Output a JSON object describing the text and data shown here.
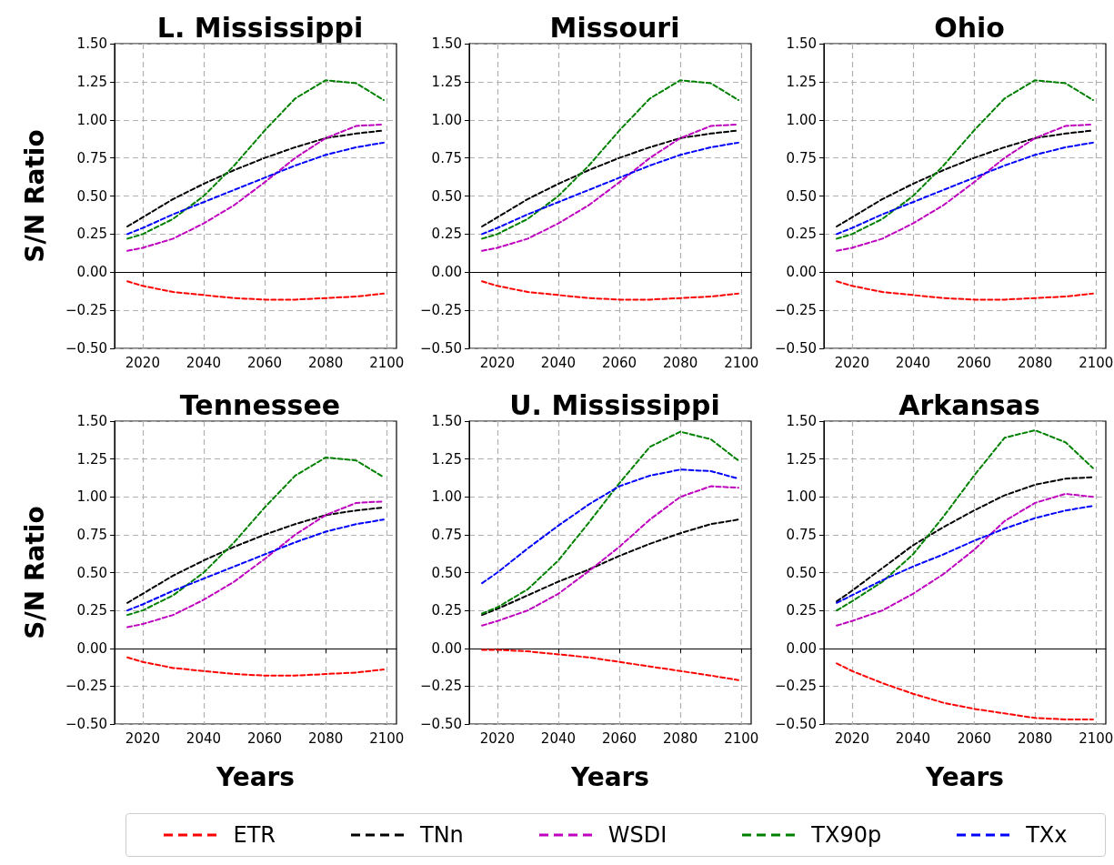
{
  "chart_data": [
    {
      "type": "line",
      "title": "L. Mississippi",
      "ylabel": "S/N Ratio",
      "x": [
        2015,
        2020,
        2030,
        2040,
        2050,
        2060,
        2070,
        2080,
        2090,
        2099
      ],
      "xlim": [
        2010.8,
        2103.2
      ],
      "xticks": [
        2020,
        2040,
        2060,
        2080,
        2100
      ],
      "ylim": [
        -0.5,
        1.5
      ],
      "yticks": [
        {
          "value": -0.5,
          "label": "−0.50"
        },
        {
          "value": -0.25,
          "label": "−0.25"
        },
        {
          "value": 0,
          "label": "0.00"
        },
        {
          "value": 0.25,
          "label": "0.25"
        },
        {
          "value": 0.5,
          "label": "0.50"
        },
        {
          "value": 0.75,
          "label": "0.75"
        },
        {
          "value": 1,
          "label": "1.00"
        },
        {
          "value": 1.25,
          "label": "1.25"
        },
        {
          "value": 1.5,
          "label": "1.50"
        }
      ],
      "grid": true,
      "marker": "none",
      "line_style": "dashed",
      "legend": "bottom",
      "series": [
        {
          "name": "ETR",
          "color": "#ff0000",
          "values": [
            -0.06,
            -0.09,
            -0.13,
            -0.15,
            -0.17,
            -0.18,
            -0.18,
            -0.17,
            -0.16,
            -0.14
          ]
        },
        {
          "name": "TNn",
          "color": "#000000",
          "values": [
            0.3,
            0.36,
            0.48,
            0.58,
            0.67,
            0.75,
            0.82,
            0.88,
            0.91,
            0.93
          ]
        },
        {
          "name": "WSDI",
          "color": "#bf00bf",
          "values": [
            0.14,
            0.16,
            0.22,
            0.32,
            0.44,
            0.59,
            0.75,
            0.88,
            0.96,
            0.97
          ]
        },
        {
          "name": "TX90p",
          "color": "#008000",
          "values": [
            0.22,
            0.25,
            0.35,
            0.5,
            0.7,
            0.93,
            1.14,
            1.26,
            1.24,
            1.13
          ]
        },
        {
          "name": "TXx",
          "color": "#0000ff",
          "values": [
            0.25,
            0.29,
            0.38,
            0.46,
            0.54,
            0.62,
            0.7,
            0.77,
            0.82,
            0.85
          ]
        }
      ]
    },
    {
      "type": "line",
      "title": "Missouri",
      "x": [
        2015,
        2020,
        2030,
        2040,
        2050,
        2060,
        2070,
        2080,
        2090,
        2099
      ],
      "xlim": [
        2010.8,
        2103.2
      ],
      "xticks": [
        2020,
        2040,
        2060,
        2080,
        2100
      ],
      "ylim": [
        -0.5,
        1.5
      ],
      "yticks": [
        {
          "value": -0.5,
          "label": "−0.50"
        },
        {
          "value": -0.25,
          "label": "−0.25"
        },
        {
          "value": 0,
          "label": "0.00"
        },
        {
          "value": 0.25,
          "label": "0.25"
        },
        {
          "value": 0.5,
          "label": "0.50"
        },
        {
          "value": 0.75,
          "label": "0.75"
        },
        {
          "value": 1,
          "label": "1.00"
        },
        {
          "value": 1.25,
          "label": "1.25"
        },
        {
          "value": 1.5,
          "label": "1.50"
        }
      ],
      "grid": true,
      "marker": "none",
      "line_style": "dashed",
      "series": [
        {
          "name": "ETR",
          "color": "#ff0000",
          "values": [
            -0.06,
            -0.09,
            -0.13,
            -0.15,
            -0.17,
            -0.18,
            -0.18,
            -0.17,
            -0.16,
            -0.14
          ]
        },
        {
          "name": "TNn",
          "color": "#000000",
          "values": [
            0.3,
            0.36,
            0.48,
            0.58,
            0.67,
            0.75,
            0.82,
            0.88,
            0.91,
            0.93
          ]
        },
        {
          "name": "WSDI",
          "color": "#bf00bf",
          "values": [
            0.14,
            0.16,
            0.22,
            0.32,
            0.44,
            0.59,
            0.75,
            0.88,
            0.96,
            0.97
          ]
        },
        {
          "name": "TX90p",
          "color": "#008000",
          "values": [
            0.22,
            0.25,
            0.35,
            0.5,
            0.7,
            0.93,
            1.14,
            1.26,
            1.24,
            1.13
          ]
        },
        {
          "name": "TXx",
          "color": "#0000ff",
          "values": [
            0.25,
            0.29,
            0.38,
            0.46,
            0.54,
            0.62,
            0.7,
            0.77,
            0.82,
            0.85
          ]
        }
      ]
    },
    {
      "type": "line",
      "title": "Ohio",
      "x": [
        2015,
        2020,
        2030,
        2040,
        2050,
        2060,
        2070,
        2080,
        2090,
        2099
      ],
      "xlim": [
        2010.8,
        2103.2
      ],
      "xticks": [
        2020,
        2040,
        2060,
        2080,
        2100
      ],
      "ylim": [
        -0.5,
        1.5
      ],
      "yticks": [
        {
          "value": -0.5,
          "label": "−0.50"
        },
        {
          "value": -0.25,
          "label": "−0.25"
        },
        {
          "value": 0,
          "label": "0.00"
        },
        {
          "value": 0.25,
          "label": "0.25"
        },
        {
          "value": 0.5,
          "label": "0.50"
        },
        {
          "value": 0.75,
          "label": "0.75"
        },
        {
          "value": 1,
          "label": "1.00"
        },
        {
          "value": 1.25,
          "label": "1.25"
        },
        {
          "value": 1.5,
          "label": "1.50"
        }
      ],
      "grid": true,
      "marker": "none",
      "line_style": "dashed",
      "series": [
        {
          "name": "ETR",
          "color": "#ff0000",
          "values": [
            -0.06,
            -0.09,
            -0.13,
            -0.15,
            -0.17,
            -0.18,
            -0.18,
            -0.17,
            -0.16,
            -0.14
          ]
        },
        {
          "name": "TNn",
          "color": "#000000",
          "values": [
            0.3,
            0.36,
            0.48,
            0.58,
            0.67,
            0.75,
            0.82,
            0.88,
            0.91,
            0.93
          ]
        },
        {
          "name": "WSDI",
          "color": "#bf00bf",
          "values": [
            0.14,
            0.16,
            0.22,
            0.32,
            0.44,
            0.59,
            0.75,
            0.88,
            0.96,
            0.97
          ]
        },
        {
          "name": "TX90p",
          "color": "#008000",
          "values": [
            0.22,
            0.25,
            0.35,
            0.5,
            0.7,
            0.93,
            1.14,
            1.26,
            1.24,
            1.13
          ]
        },
        {
          "name": "TXx",
          "color": "#0000ff",
          "values": [
            0.25,
            0.29,
            0.38,
            0.46,
            0.54,
            0.62,
            0.7,
            0.77,
            0.82,
            0.85
          ]
        }
      ]
    },
    {
      "type": "line",
      "title": "Tennessee",
      "xlabel": "Years",
      "ylabel": "S/N Ratio",
      "x": [
        2015,
        2020,
        2030,
        2040,
        2050,
        2060,
        2070,
        2080,
        2090,
        2099
      ],
      "xlim": [
        2010.8,
        2103.2
      ],
      "xticks": [
        2020,
        2040,
        2060,
        2080,
        2100
      ],
      "ylim": [
        -0.5,
        1.5
      ],
      "yticks": [
        {
          "value": -0.5,
          "label": "−0.50"
        },
        {
          "value": -0.25,
          "label": "−0.25"
        },
        {
          "value": 0,
          "label": "0.00"
        },
        {
          "value": 0.25,
          "label": "0.25"
        },
        {
          "value": 0.5,
          "label": "0.50"
        },
        {
          "value": 0.75,
          "label": "0.75"
        },
        {
          "value": 1,
          "label": "1.00"
        },
        {
          "value": 1.25,
          "label": "1.25"
        },
        {
          "value": 1.5,
          "label": "1.50"
        }
      ],
      "grid": true,
      "marker": "none",
      "line_style": "dashed",
      "series": [
        {
          "name": "ETR",
          "color": "#ff0000",
          "values": [
            -0.06,
            -0.09,
            -0.13,
            -0.15,
            -0.17,
            -0.18,
            -0.18,
            -0.17,
            -0.16,
            -0.14
          ]
        },
        {
          "name": "TNn",
          "color": "#000000",
          "values": [
            0.3,
            0.36,
            0.48,
            0.58,
            0.67,
            0.75,
            0.82,
            0.88,
            0.91,
            0.93
          ]
        },
        {
          "name": "WSDI",
          "color": "#bf00bf",
          "values": [
            0.14,
            0.16,
            0.22,
            0.32,
            0.44,
            0.59,
            0.75,
            0.88,
            0.96,
            0.97
          ]
        },
        {
          "name": "TX90p",
          "color": "#008000",
          "values": [
            0.22,
            0.25,
            0.35,
            0.5,
            0.7,
            0.93,
            1.14,
            1.26,
            1.24,
            1.13
          ]
        },
        {
          "name": "TXx",
          "color": "#0000ff",
          "values": [
            0.25,
            0.29,
            0.38,
            0.46,
            0.54,
            0.62,
            0.7,
            0.77,
            0.82,
            0.85
          ]
        }
      ]
    },
    {
      "type": "line",
      "title": "U. Mississippi",
      "xlabel": "Years",
      "x": [
        2015,
        2020,
        2030,
        2040,
        2050,
        2060,
        2070,
        2080,
        2090,
        2099
      ],
      "xlim": [
        2010.8,
        2103.2
      ],
      "xticks": [
        2020,
        2040,
        2060,
        2080,
        2100
      ],
      "ylim": [
        -0.5,
        1.5
      ],
      "yticks": [
        {
          "value": -0.5,
          "label": "−0.50"
        },
        {
          "value": -0.25,
          "label": "−0.25"
        },
        {
          "value": 0,
          "label": "0.00"
        },
        {
          "value": 0.25,
          "label": "0.25"
        },
        {
          "value": 0.5,
          "label": "0.50"
        },
        {
          "value": 0.75,
          "label": "0.75"
        },
        {
          "value": 1,
          "label": "1.00"
        },
        {
          "value": 1.25,
          "label": "1.25"
        },
        {
          "value": 1.5,
          "label": "1.50"
        }
      ],
      "grid": true,
      "marker": "none",
      "line_style": "dashed",
      "series": [
        {
          "name": "ETR",
          "color": "#ff0000",
          "values": [
            -0.01,
            -0.01,
            -0.02,
            -0.04,
            -0.06,
            -0.09,
            -0.12,
            -0.15,
            -0.18,
            -0.21
          ]
        },
        {
          "name": "TNn",
          "color": "#000000",
          "values": [
            0.22,
            0.26,
            0.35,
            0.44,
            0.52,
            0.61,
            0.69,
            0.76,
            0.82,
            0.85
          ]
        },
        {
          "name": "WSDI",
          "color": "#bf00bf",
          "values": [
            0.15,
            0.18,
            0.25,
            0.36,
            0.51,
            0.67,
            0.85,
            1.0,
            1.07,
            1.06
          ]
        },
        {
          "name": "TX90p",
          "color": "#008000",
          "values": [
            0.23,
            0.27,
            0.39,
            0.58,
            0.83,
            1.09,
            1.33,
            1.43,
            1.38,
            1.24
          ]
        },
        {
          "name": "TXx",
          "color": "#0000ff",
          "values": [
            0.43,
            0.5,
            0.66,
            0.81,
            0.95,
            1.07,
            1.14,
            1.18,
            1.17,
            1.12
          ]
        }
      ]
    },
    {
      "type": "line",
      "title": "Arkansas",
      "xlabel": "Years",
      "x": [
        2015,
        2020,
        2030,
        2040,
        2050,
        2060,
        2070,
        2080,
        2090,
        2099
      ],
      "xlim": [
        2010.8,
        2103.2
      ],
      "xticks": [
        2020,
        2040,
        2060,
        2080,
        2100
      ],
      "ylim": [
        -0.5,
        1.5
      ],
      "yticks": [
        {
          "value": -0.5,
          "label": "−0.50"
        },
        {
          "value": -0.25,
          "label": "−0.25"
        },
        {
          "value": 0,
          "label": "0.00"
        },
        {
          "value": 0.25,
          "label": "0.25"
        },
        {
          "value": 0.5,
          "label": "0.50"
        },
        {
          "value": 0.75,
          "label": "0.75"
        },
        {
          "value": 1,
          "label": "1.00"
        },
        {
          "value": 1.25,
          "label": "1.25"
        },
        {
          "value": 1.5,
          "label": "1.50"
        }
      ],
      "grid": true,
      "marker": "none",
      "line_style": "dashed",
      "series": [
        {
          "name": "ETR",
          "color": "#ff0000",
          "values": [
            -0.1,
            -0.15,
            -0.23,
            -0.3,
            -0.36,
            -0.4,
            -0.43,
            -0.46,
            -0.47,
            -0.47
          ]
        },
        {
          "name": "TNn",
          "color": "#000000",
          "values": [
            0.31,
            0.38,
            0.53,
            0.68,
            0.8,
            0.91,
            1.01,
            1.08,
            1.12,
            1.13
          ]
        },
        {
          "name": "WSDI",
          "color": "#bf00bf",
          "values": [
            0.15,
            0.18,
            0.25,
            0.36,
            0.49,
            0.65,
            0.84,
            0.96,
            1.02,
            1.0
          ]
        },
        {
          "name": "TX90p",
          "color": "#008000",
          "values": [
            0.25,
            0.31,
            0.44,
            0.62,
            0.87,
            1.14,
            1.39,
            1.44,
            1.36,
            1.19
          ]
        },
        {
          "name": "TXx",
          "color": "#0000ff",
          "values": [
            0.3,
            0.35,
            0.45,
            0.54,
            0.62,
            0.71,
            0.79,
            0.86,
            0.91,
            0.94
          ]
        }
      ]
    }
  ]
}
